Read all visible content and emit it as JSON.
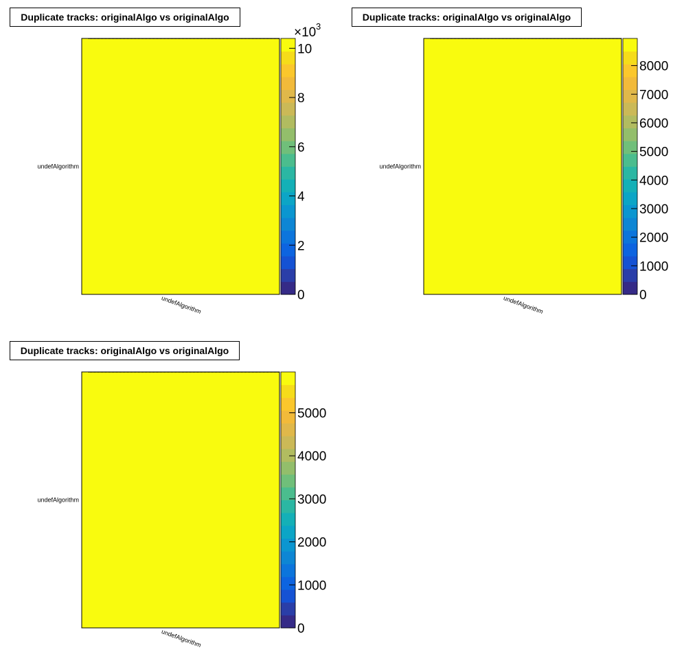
{
  "palette": [
    "#352a87",
    "#2a3ea8",
    "#1552d4",
    "#0d64e0",
    "#0c75dc",
    "#0d86d4",
    "#0b96d0",
    "#0ca5c6",
    "#14b0b7",
    "#2bb7a3",
    "#4bbd8e",
    "#70bf7a",
    "#93be6b",
    "#b1bc60",
    "#cbb957",
    "#e0b84a",
    "#f2ba3a",
    "#fbc72c",
    "#f6dc1a",
    "#f9fb0e"
  ],
  "chart_data": [
    {
      "type": "heatmap",
      "title": "Duplicate tracks: originalAlgo vs originalAlgo",
      "x_categories": [
        "undefAlgorithm"
      ],
      "y_categories": [
        "undefAlgorithm"
      ],
      "values": [
        [
          10400
        ]
      ],
      "z_range": [
        0,
        10400
      ],
      "z_ticks": [
        0,
        2,
        4,
        6,
        8,
        10
      ],
      "z_tick_labels": [
        "0",
        "2",
        "4",
        "6",
        "8",
        "10"
      ],
      "z_exponent": "×10",
      "z_exponent_power": "3"
    },
    {
      "type": "heatmap",
      "title": "Duplicate tracks: originalAlgo vs originalAlgo",
      "x_categories": [
        "undefAlgorithm"
      ],
      "y_categories": [
        "undefAlgorithm"
      ],
      "values": [
        [
          8950
        ]
      ],
      "z_range": [
        0,
        8950
      ],
      "z_ticks": [
        0,
        1000,
        2000,
        3000,
        4000,
        5000,
        6000,
        7000,
        8000
      ],
      "z_tick_labels": [
        "0",
        "1000",
        "2000",
        "3000",
        "4000",
        "5000",
        "6000",
        "7000",
        "8000"
      ],
      "z_exponent": "",
      "z_exponent_power": ""
    },
    {
      "type": "heatmap",
      "title": "Duplicate tracks: originalAlgo vs originalAlgo",
      "x_categories": [
        "undefAlgorithm"
      ],
      "y_categories": [
        "undefAlgorithm"
      ],
      "values": [
        [
          5950
        ]
      ],
      "z_range": [
        0,
        5950
      ],
      "z_ticks": [
        0,
        1000,
        2000,
        3000,
        4000,
        5000
      ],
      "z_tick_labels": [
        "0",
        "1000",
        "2000",
        "3000",
        "4000",
        "5000"
      ],
      "z_exponent": "",
      "z_exponent_power": ""
    }
  ]
}
